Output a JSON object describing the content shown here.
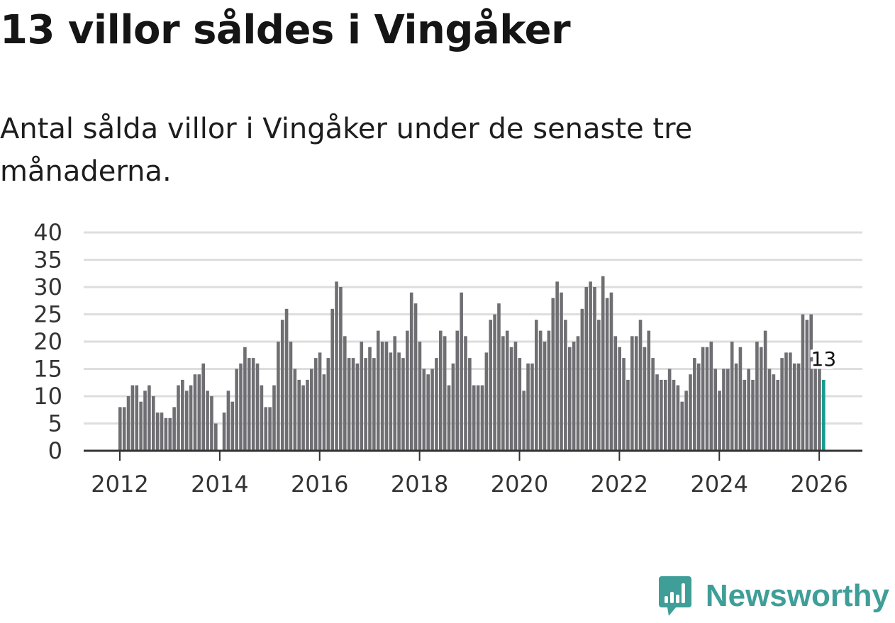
{
  "header": {
    "title": "13 villor såldes i Vingåker",
    "subtitle": "Antal sålda villor i Vingåker under de senaste tre månaderna."
  },
  "brand": {
    "name": "Newsworthy",
    "color": "#3f9e98"
  },
  "colors": {
    "bar": "#6e6e73",
    "highlight": "#1a9a8f",
    "grid": "#dedede",
    "axis": "#333333"
  },
  "chart_data": {
    "type": "bar",
    "title": "13 villor såldes i Vingåker",
    "subtitle": "Antal sålda villor i Vingåker under de senaste tre månaderna.",
    "xlabel": "",
    "ylabel": "",
    "ylim": [
      0,
      40
    ],
    "yticks": [
      0,
      5,
      10,
      15,
      20,
      25,
      30,
      35,
      40
    ],
    "xticks": [
      "2012",
      "2014",
      "2016",
      "2018",
      "2020",
      "2022",
      "2024",
      "2026"
    ],
    "grid": true,
    "start": "2012-01",
    "end": "2026-02",
    "frequency": "monthly",
    "highlight_label": "13",
    "values": [
      8,
      8,
      10,
      12,
      12,
      9,
      11,
      12,
      10,
      7,
      7,
      6,
      6,
      8,
      12,
      13,
      11,
      12,
      14,
      14,
      16,
      11,
      10,
      5,
      0,
      7,
      11,
      9,
      15,
      16,
      19,
      17,
      17,
      16,
      12,
      8,
      8,
      12,
      20,
      24,
      26,
      20,
      15,
      13,
      12,
      13,
      15,
      17,
      18,
      14,
      17,
      26,
      31,
      30,
      21,
      17,
      17,
      16,
      20,
      17,
      19,
      17,
      22,
      20,
      20,
      18,
      21,
      18,
      17,
      22,
      29,
      27,
      20,
      15,
      14,
      15,
      17,
      22,
      21,
      12,
      16,
      22,
      29,
      21,
      17,
      12,
      12,
      12,
      18,
      24,
      25,
      27,
      21,
      22,
      19,
      20,
      17,
      11,
      16,
      16,
      24,
      22,
      20,
      22,
      28,
      31,
      29,
      24,
      19,
      20,
      21,
      26,
      30,
      31,
      30,
      24,
      32,
      28,
      29,
      21,
      19,
      17,
      13,
      21,
      21,
      24,
      19,
      22,
      17,
      14,
      13,
      13,
      15,
      13,
      12,
      9,
      11,
      14,
      17,
      16,
      19,
      19,
      20,
      15,
      11,
      15,
      15,
      20,
      16,
      19,
      13,
      15,
      13,
      20,
      19,
      22,
      15,
      14,
      13,
      17,
      18,
      18,
      16,
      16,
      25,
      24,
      25,
      17,
      15,
      13
    ]
  }
}
